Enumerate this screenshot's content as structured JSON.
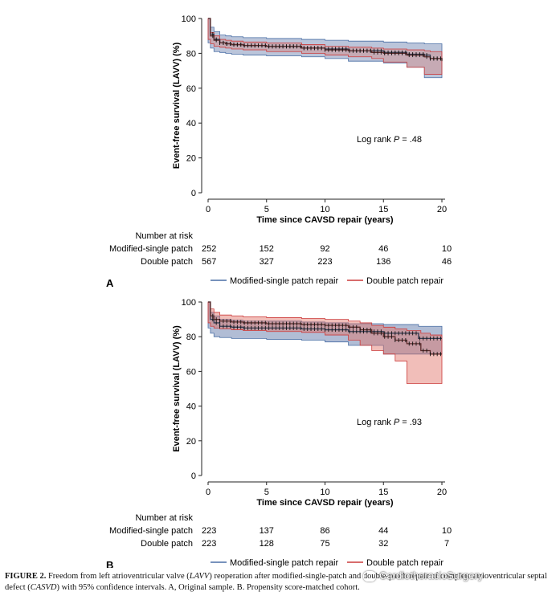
{
  "chart_data": [
    {
      "type": "line",
      "panel_label": "A",
      "ylabel": "Event-free survival (LAVV) (%)",
      "xlabel": "Time since CAVSD repair (years)",
      "xticks": [
        0,
        5,
        10,
        15,
        20
      ],
      "yticks": [
        0,
        20,
        40,
        60,
        80,
        100
      ],
      "xlim": [
        0,
        20
      ],
      "ylim": [
        0,
        100
      ],
      "annotation": {
        "prefix": "Log rank ",
        "p": "P",
        "value": " = .48"
      },
      "series": [
        {
          "name": "Modified-single patch repair",
          "color": "#4a6fa5",
          "fill": "rgba(60,90,150,0.35)",
          "x": [
            0,
            0.2,
            0.5,
            1,
            1.5,
            2,
            3,
            5,
            8,
            10,
            12,
            15,
            17,
            18.5,
            19,
            20
          ],
          "y": [
            100,
            91,
            88,
            86,
            85.5,
            85,
            84.5,
            84,
            83,
            82.5,
            81.5,
            80.5,
            79.5,
            79,
            77,
            76
          ],
          "lower": [
            100,
            86,
            83,
            81,
            80.5,
            80,
            79.5,
            79,
            78.5,
            78,
            77,
            75.5,
            74.5,
            72,
            66,
            66
          ],
          "upper": [
            100,
            95,
            92.5,
            90.5,
            90,
            89.5,
            89,
            88.5,
            88,
            87.5,
            87,
            86.5,
            86,
            85.5,
            85.5,
            85.5
          ]
        },
        {
          "name": "Double patch repair",
          "color": "#cc3b3b",
          "fill": "rgba(220,120,110,0.35)",
          "x": [
            0,
            0.2,
            0.5,
            1,
            1.5,
            2,
            3,
            5,
            8,
            10,
            12,
            14,
            15,
            17,
            18.5,
            19,
            20
          ],
          "y": [
            100,
            90,
            87.5,
            86,
            85.5,
            85,
            84.5,
            84,
            83,
            82,
            81.5,
            80.5,
            80,
            79,
            78,
            77,
            75.5
          ],
          "lower": [
            100,
            88,
            85.5,
            84,
            83.5,
            83,
            82.5,
            82,
            81,
            80,
            79,
            78,
            77,
            75,
            72,
            68,
            68
          ],
          "upper": [
            100,
            92,
            90,
            88,
            87.5,
            87,
            86.5,
            86,
            85,
            84,
            83.5,
            83,
            82.5,
            82,
            81.5,
            81,
            81
          ]
        }
      ],
      "at_risk": {
        "title": "Number at risk",
        "rows": [
          {
            "label": "Modified-single patch",
            "values": [
              252,
              152,
              92,
              46,
              10
            ]
          },
          {
            "label": "Double patch",
            "values": [
              567,
              327,
              223,
              136,
              46
            ]
          }
        ]
      }
    },
    {
      "type": "line",
      "panel_label": "B",
      "ylabel": "Event-free survival (LAVV) (%)",
      "xlabel": "Time since CAVSD repair (years)",
      "xticks": [
        0,
        5,
        10,
        15,
        20
      ],
      "yticks": [
        0,
        20,
        40,
        60,
        80,
        100
      ],
      "xlim": [
        0,
        20
      ],
      "ylim": [
        0,
        100
      ],
      "annotation": {
        "prefix": "Log rank ",
        "p": "P",
        "value": " = .93"
      },
      "series": [
        {
          "name": "Modified-single patch repair",
          "color": "#4a6fa5",
          "fill": "rgba(60,90,150,0.40)",
          "x": [
            0,
            0.2,
            0.5,
            1,
            2,
            3,
            5,
            8,
            10,
            12,
            15,
            18,
            20
          ],
          "y": [
            100,
            90,
            88,
            86,
            85.5,
            85,
            85,
            84.5,
            84,
            83,
            82,
            79,
            79
          ],
          "lower": [
            100,
            85,
            82,
            80,
            79.5,
            79,
            79,
            78.5,
            78,
            77,
            75,
            70,
            70
          ],
          "upper": [
            100,
            94,
            92,
            90,
            89.5,
            89,
            89,
            88.5,
            88,
            87.5,
            87,
            86,
            86
          ]
        },
        {
          "name": "Double patch repair",
          "color": "#cc3b3b",
          "fill": "rgba(225,110,100,0.45)",
          "x": [
            0,
            0.2,
            0.5,
            1,
            2,
            3,
            5,
            8,
            10,
            12,
            13,
            14,
            15,
            16,
            17,
            18.2,
            19,
            20
          ],
          "y": [
            100,
            92,
            90,
            89,
            88.5,
            88,
            87.5,
            87,
            86.5,
            85.5,
            84,
            82,
            80,
            78,
            76,
            72,
            70,
            70
          ],
          "lower": [
            100,
            88,
            86,
            85,
            84.5,
            84,
            83.5,
            83,
            82.5,
            81,
            78,
            75,
            72,
            70,
            66,
            53,
            53,
            53
          ],
          "upper": [
            100,
            96,
            94,
            92.5,
            92,
            91.5,
            91,
            90.5,
            90,
            89,
            88,
            86.5,
            85.5,
            84.5,
            83.5,
            82,
            81,
            80
          ]
        }
      ],
      "at_risk": {
        "title": "Number at risk",
        "rows": [
          {
            "label": "Modified-single patch",
            "values": [
              223,
              137,
              86,
              44,
              10
            ]
          },
          {
            "label": "Double patch",
            "values": [
              223,
              128,
              75,
              32,
              7
            ]
          }
        ]
      }
    }
  ],
  "caption": {
    "label": "FIGURE 2.",
    "text_1": " Freedom from left atrioventricular valve (",
    "lavv": "LAVV",
    "text_2": ") reoperation after modified-single-patch and double-patch repair of complete atrioventricular septal defect (",
    "casvd": "CASVD",
    "text_3": ") with 95% confidence intervals. A, Original sample. B. Propensity score-matched cohort."
  },
  "watermark": "CardiothoracicSurgery"
}
